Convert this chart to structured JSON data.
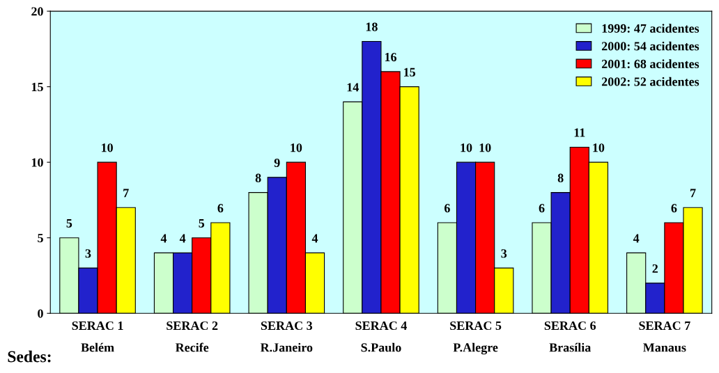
{
  "chart_data": {
    "type": "bar",
    "xlabel": "Sedes:",
    "categories": [
      "SERAC 1\nBelém",
      "SERAC 2\nRecife",
      "SERAC 3\nR.Janeiro",
      "SERAC 4\nS.Paulo",
      "SERAC 5\nP.Alegre",
      "SERAC 6\nBrasília",
      "SERAC 7\nManaus"
    ],
    "series": [
      {
        "name": "1999: 47 acidentes",
        "color": "#ccffcc",
        "values": [
          5,
          4,
          8,
          14,
          6,
          6,
          4
        ]
      },
      {
        "name": "2000: 54 acidentes",
        "color": "#2222cc",
        "values": [
          3,
          4,
          9,
          18,
          10,
          8,
          2
        ]
      },
      {
        "name": "2001: 68 acidentes",
        "color": "#ff0000",
        "values": [
          10,
          5,
          10,
          16,
          10,
          11,
          6
        ]
      },
      {
        "name": "2002: 52 acidentes",
        "color": "#ffff00",
        "values": [
          7,
          6,
          4,
          15,
          3,
          10,
          7
        ]
      }
    ],
    "ylim": [
      0,
      20
    ],
    "yticks": [
      0,
      5,
      10,
      15,
      20
    ],
    "grid": false,
    "legend": "top right",
    "data_labels": true
  }
}
